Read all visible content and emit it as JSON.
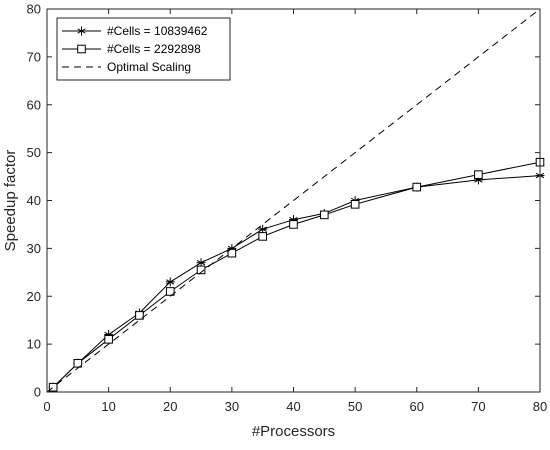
{
  "chart_data": {
    "type": "line",
    "title": "",
    "xlabel": "#Processors",
    "ylabel": "Speedup factor",
    "xlim": [
      0,
      80
    ],
    "ylim": [
      0,
      80
    ],
    "xticks": [
      0,
      10,
      20,
      30,
      40,
      50,
      60,
      70,
      80
    ],
    "yticks": [
      0,
      10,
      20,
      30,
      40,
      50,
      60,
      70,
      80
    ],
    "grid": false,
    "legend_position": "top-left",
    "series": [
      {
        "name": "#Cells = 10839462",
        "marker": "asterisk",
        "line": "solid",
        "color": "#000000",
        "x": [
          1,
          5,
          10,
          15,
          20,
          25,
          30,
          35,
          40,
          45,
          50,
          60,
          70,
          80
        ],
        "y": [
          1,
          6,
          12,
          16.5,
          23,
          27,
          30,
          34,
          36,
          37.3,
          40,
          42.8,
          44.3,
          45.2
        ]
      },
      {
        "name": "#Cells = 2292898",
        "marker": "square",
        "line": "solid",
        "color": "#000000",
        "x": [
          1,
          5,
          10,
          15,
          20,
          25,
          30,
          35,
          40,
          45,
          50,
          60,
          70,
          80
        ],
        "y": [
          1,
          6,
          11,
          16,
          21,
          25.5,
          29,
          32.5,
          35,
          37,
          39.2,
          42.8,
          45.4,
          48
        ]
      },
      {
        "name": "Optimal Scaling",
        "marker": "none",
        "line": "dashed",
        "color": "#000000",
        "x": [
          0,
          80
        ],
        "y": [
          0,
          80
        ]
      }
    ]
  }
}
